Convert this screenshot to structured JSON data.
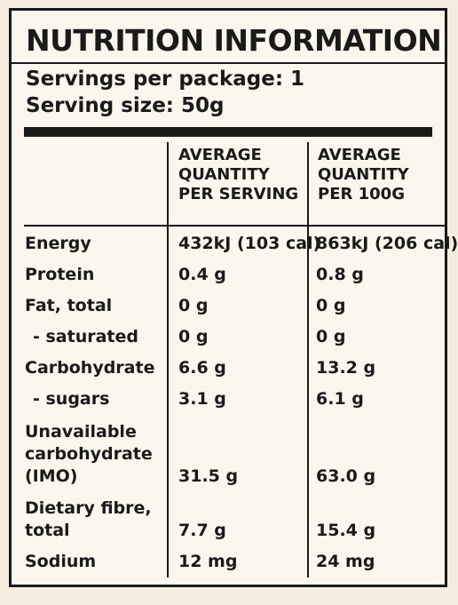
{
  "title": "NUTRITION INFORMATION",
  "servings_per_package": "Servings per package: 1",
  "serving_size": "Serving size: 50g",
  "columns": {
    "per_serving": [
      "AVERAGE",
      "QUANTITY",
      "PER SERVING"
    ],
    "per_100g": [
      "AVERAGE",
      "QUANTITY",
      "PER 100G"
    ]
  },
  "rows": [
    {
      "label": "Energy",
      "per_serving": "432kJ (103 cal)",
      "per_100g": "863kJ (206 cal)"
    },
    {
      "label": "Protein",
      "per_serving": "0.4 g",
      "per_100g": "0.8 g"
    },
    {
      "label": "Fat, total",
      "per_serving": "0 g",
      "per_100g": "0 g"
    },
    {
      "label": "- saturated",
      "per_serving": "0 g",
      "per_100g": "0 g"
    },
    {
      "label": "Carbohydrate",
      "per_serving": "6.6 g",
      "per_100g": "13.2 g"
    },
    {
      "label": "- sugars",
      "per_serving": "3.1 g",
      "per_100g": "6.1 g"
    },
    {
      "label_lines": [
        "Unavailable",
        "carbohydrate",
        "(IMO)"
      ],
      "per_serving": "31.5 g",
      "per_100g": "63.0 g"
    },
    {
      "label_lines": [
        "Dietary fibre,",
        "total"
      ],
      "per_serving": "7.7 g",
      "per_100g": "15.4 g"
    },
    {
      "label": "Sodium",
      "per_serving": "12 mg",
      "per_100g": "24 mg"
    }
  ]
}
